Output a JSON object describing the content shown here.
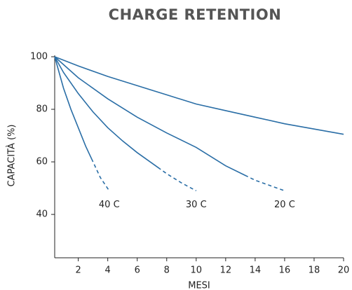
{
  "chart_data": {
    "type": "line",
    "title": "CHARGE RETENTION",
    "x_label": "MESI",
    "y_label": "CAPACITÀ (%)",
    "xlim": [
      0.4,
      20
    ],
    "xticks": [
      2,
      4,
      6,
      8,
      10,
      12,
      14,
      16,
      18,
      20
    ],
    "ylim": [
      23.5,
      100
    ],
    "yticks": [
      40,
      60,
      80,
      100
    ],
    "series": [
      {
        "color": "#2a6ea6",
        "x": [
          0.4,
          2,
          4,
          6,
          8,
          10,
          12,
          14,
          16,
          18,
          20
        ],
        "values": [
          100,
          96.5,
          92.5,
          89,
          85.5,
          82,
          79.5,
          77,
          74.5,
          72.5,
          70.5
        ]
      },
      {
        "name": "20 C",
        "color": "#2a6ea6",
        "dashed_after": 13.3,
        "x": [
          0.4,
          2,
          4,
          6,
          8,
          10,
          12,
          14,
          16
        ],
        "values": [
          100,
          92,
          84,
          77,
          71,
          65.5,
          58.5,
          53,
          49
        ]
      },
      {
        "name": "30 C",
        "color": "#2a6ea6",
        "dashed_after": 7.4,
        "x": [
          0.4,
          1,
          2,
          3,
          4,
          5,
          6,
          7,
          8,
          9,
          10
        ],
        "values": [
          100,
          94,
          86,
          79,
          73,
          68,
          63.5,
          59.5,
          55.5,
          52,
          49
        ]
      },
      {
        "name": "40 C",
        "color": "#2a6ea6",
        "dashed_after": 2.9,
        "x": [
          0.4,
          1,
          1.5,
          2,
          2.5,
          3,
          3.5,
          4.1
        ],
        "values": [
          100,
          88,
          80,
          73,
          66,
          60,
          54,
          49
        ]
      }
    ]
  }
}
